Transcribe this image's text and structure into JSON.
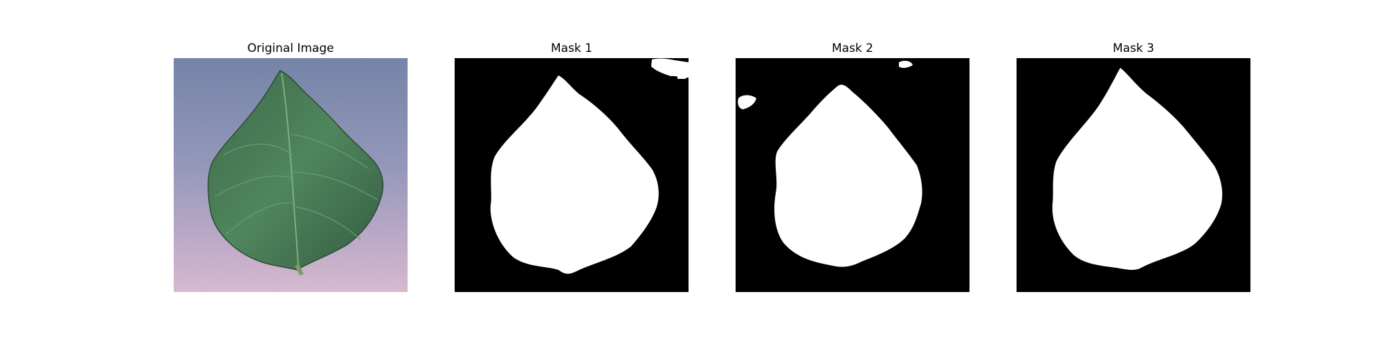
{
  "figure": {
    "panels": [
      {
        "title": "Original Image",
        "kind": "photo"
      },
      {
        "title": "Mask 1",
        "kind": "mask"
      },
      {
        "title": "Mask 2",
        "kind": "mask"
      },
      {
        "title": "Mask 3",
        "kind": "mask"
      }
    ]
  },
  "colors": {
    "mask_background": "#000000",
    "mask_foreground": "#ffffff",
    "leaf_dark": "#33573f",
    "leaf_light": "#4f8a5f",
    "background_top": "#6f82a8",
    "background_bottom": "#d8b6cf"
  }
}
